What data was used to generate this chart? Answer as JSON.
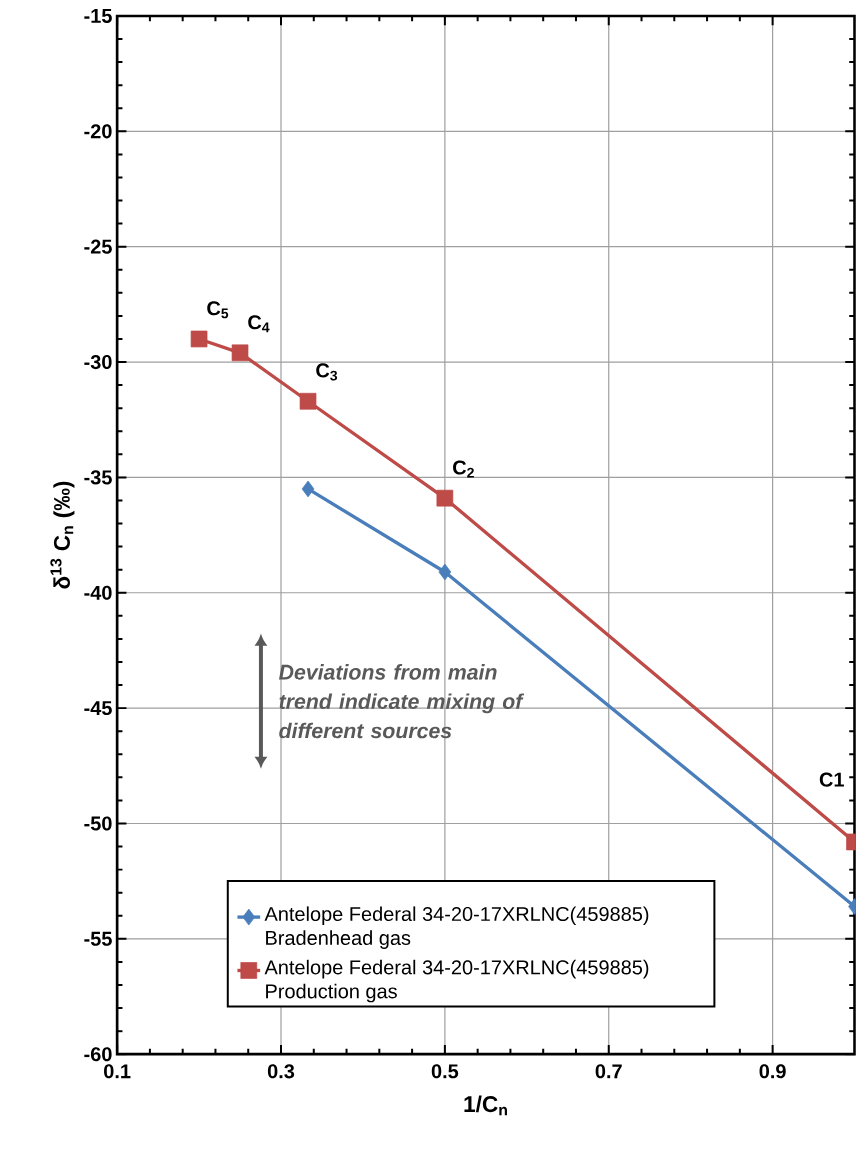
{
  "chart_data": {
    "type": "line",
    "xlabel": "1/C$_{n}$",
    "ylabel": "δ$^{13}$ C$_{n}$ (‰)",
    "series": [
      {
        "name": "Antelope Federal 34-20-17XRLNC(459885) Bradenhead gas",
        "color": "#4a7ebb",
        "marker": "diamond",
        "x": [
          0.333,
          0.5,
          1.0
        ],
        "values": [
          -35.5,
          -39.1,
          -53.6
        ]
      },
      {
        "name": "Antelope Federal 34-20-17XRLNC(459885) Production gas",
        "color": "#be4b48",
        "marker": "square",
        "x": [
          0.2,
          0.25,
          0.333,
          0.5,
          1.0
        ],
        "values": [
          -29.0,
          -29.6,
          -31.7,
          -35.9,
          -50.8
        ]
      }
    ],
    "xlim": [
      0.1,
      1.0
    ],
    "xticks": [
      0.1,
      0.3,
      0.5,
      0.7,
      0.9
    ],
    "ylim": [
      -60,
      -15
    ],
    "yticks": [
      -60,
      -55,
      -50,
      -45,
      -40,
      -35,
      -30,
      -25,
      -20,
      -15
    ],
    "grid": true,
    "legend": "bottom",
    "line_style": "solid",
    "annotations": [
      {
        "text": "C$_{5}$",
        "x": 0.2,
        "y": -29.0
      },
      {
        "text": "C$_{4}$",
        "x": 0.25,
        "y": -29.6
      },
      {
        "text": "C$_{3}$",
        "x": 0.333,
        "y": -31.7
      },
      {
        "text": "C$_{2}$",
        "x": 0.5,
        "y": -35.9
      },
      {
        "text": "C1",
        "x": 1.0,
        "y": -50.8
      },
      "*Deviations from main trend indicate mixing of different sources*"
    ]
  }
}
